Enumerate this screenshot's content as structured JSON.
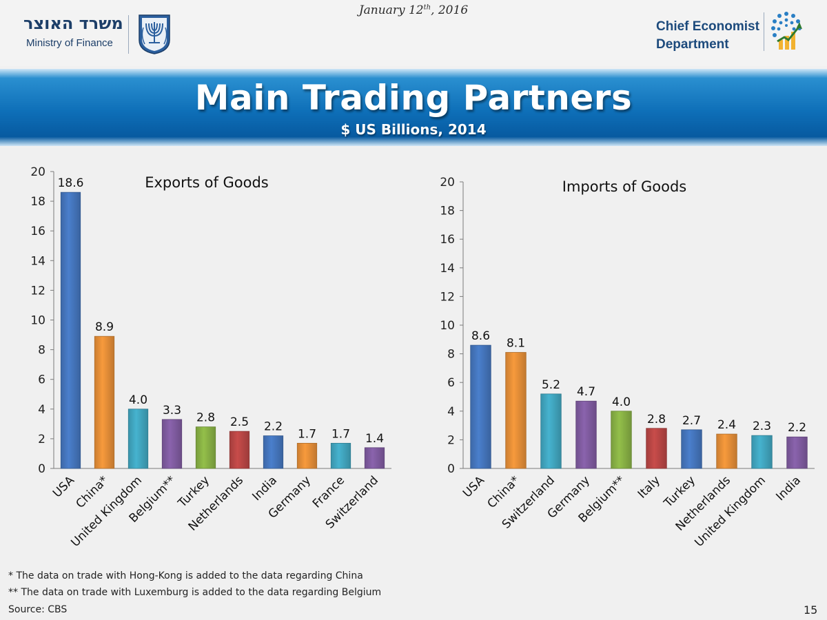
{
  "header": {
    "ministry_hebrew": "משרד האוצר",
    "ministry_english": "Ministry of Finance",
    "date_prefix": "January 12",
    "date_suffix": "th",
    "date_year": ", 2016",
    "department_line1": "Chief Economist",
    "department_line2": "Department",
    "emblem_icon": "menorah-emblem-icon",
    "department_icon": "chart-dots-logo-icon"
  },
  "banner": {
    "title": "Main Trading Partners",
    "subtitle": "$ US Billions, 2014"
  },
  "chart_data": [
    {
      "type": "bar",
      "title": "Exports of Goods",
      "categories": [
        "USA",
        "China*",
        "United Kingdom",
        "Belgium**",
        "Turkey",
        "Netherlands",
        "India",
        "Germany",
        "France",
        "Switzerland"
      ],
      "values": [
        18.6,
        8.9,
        4.0,
        3.3,
        2.8,
        2.5,
        2.2,
        1.7,
        1.7,
        1.4
      ],
      "value_labels": [
        "18.6",
        "8.9",
        "4.0",
        "3.3",
        "2.8",
        "2.5",
        "2.2",
        "1.7",
        "1.7",
        "1.4"
      ],
      "colors": [
        "#4a7fcc",
        "#f79a3c",
        "#46b3cf",
        "#8a63ad",
        "#93bf4a",
        "#c84c4a",
        "#4a7fcc",
        "#f79a3c",
        "#46b3cf",
        "#8a63ad"
      ],
      "ylim": [
        0,
        20
      ],
      "yticks": [
        0,
        2,
        4,
        6,
        8,
        10,
        12,
        14,
        16,
        18,
        20
      ],
      "xlabel": "",
      "ylabel": ""
    },
    {
      "type": "bar",
      "title": "Imports of Goods",
      "categories": [
        "USA",
        "China*",
        "Switzerland",
        "Germany",
        "Belgium**",
        "Italy",
        "Turkey",
        "Netherlands",
        "United Kingdom",
        "India"
      ],
      "values": [
        8.6,
        8.1,
        5.2,
        4.7,
        4.0,
        2.8,
        2.7,
        2.4,
        2.3,
        2.2
      ],
      "value_labels": [
        "8.6",
        "8.1",
        "5.2",
        "4.7",
        "4.0",
        "2.8",
        "2.7",
        "2.4",
        "2.3",
        "2.2"
      ],
      "colors": [
        "#4a7fcc",
        "#f79a3c",
        "#46b3cf",
        "#8a63ad",
        "#93bf4a",
        "#c84c4a",
        "#4a7fcc",
        "#f79a3c",
        "#46b3cf",
        "#8a63ad"
      ],
      "ylim": [
        0,
        20
      ],
      "yticks": [
        0,
        2,
        4,
        6,
        8,
        10,
        12,
        14,
        16,
        18,
        20
      ],
      "xlabel": "",
      "ylabel": ""
    }
  ],
  "footnotes": {
    "note1": "* The data on trade with Hong-Kong is added to the data regarding China",
    "note2": "** The data on trade with Luxemburg is added to the data regarding Belgium",
    "source": "Source: CBS"
  },
  "page_number": "15"
}
